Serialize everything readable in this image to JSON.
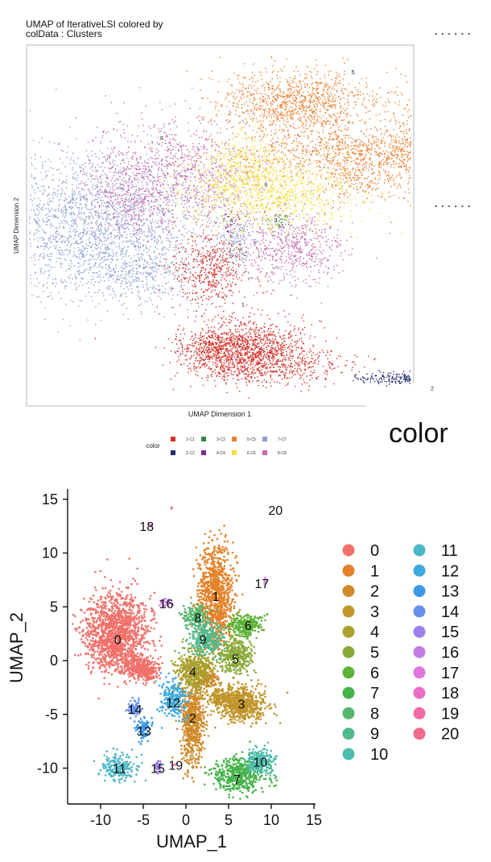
{
  "top": {
    "title_line1": "UMAP of IterativeLSI  colored by",
    "title_line2": "colData :  Clusters",
    "dots_a": "......",
    "dots_b": "......",
    "big_label": "color"
  },
  "chart_data": [
    {
      "type": "scatter",
      "title": "UMAP of IterativeLSI  colored by colData :  Clusters",
      "xlabel": "UMAP Dimension 1",
      "ylabel": "UMAP Dimension 2",
      "grid": false,
      "legend_title": "color",
      "legend_position": "bottom",
      "series": [
        {
          "name": "1-C1",
          "color": "#d62f28",
          "centroid": [
            0.12,
            -0.45
          ],
          "label": "1"
        },
        {
          "name": "2-C2",
          "color": "#232c6e",
          "centroid": [
            1.1,
            -0.92
          ],
          "label": "2"
        },
        {
          "name": "3-C3",
          "color": "#2e8b3e",
          "centroid": [
            0.29,
            0.02
          ],
          "label": "3"
        },
        {
          "name": "4-C4",
          "color": "#7b2c92",
          "centroid": [
            0.06,
            0.02
          ],
          "label": "4"
        },
        {
          "name": "5-C5",
          "color": "#ec7e2d",
          "centroid": [
            0.69,
            0.85
          ],
          "label": "5"
        },
        {
          "name": "6-C6",
          "color": "#f6df3e",
          "centroid": [
            0.24,
            0.22
          ],
          "label": "6"
        },
        {
          "name": "7-C7",
          "color": "#8da0d1",
          "centroid": [
            -0.7,
            0.01
          ],
          "label": "7"
        },
        {
          "name": "8-C8",
          "color": "#c26bb0",
          "centroid": [
            -0.3,
            0.48
          ],
          "label": "8"
        }
      ]
    },
    {
      "type": "scatter",
      "xlabel": "UMAP_1",
      "ylabel": "UMAP_2",
      "xlim": [
        -14,
        15.5
      ],
      "ylim": [
        -13.5,
        15.5
      ],
      "x_ticks": [
        -10,
        -5,
        0,
        5,
        10,
        15
      ],
      "y_ticks": [
        -10,
        -5,
        0,
        5,
        10,
        15
      ],
      "grid": false,
      "legend_position": "right",
      "series": [
        {
          "name": "0",
          "color": "#f0706a",
          "centroid": [
            -8.0,
            2.0
          ]
        },
        {
          "name": "1",
          "color": "#e3822a",
          "centroid": [
            3.5,
            6.0
          ]
        },
        {
          "name": "2",
          "color": "#d08a2a",
          "centroid": [
            0.8,
            -5.3
          ]
        },
        {
          "name": "3",
          "color": "#c0962c",
          "centroid": [
            6.5,
            -4.0
          ]
        },
        {
          "name": "4",
          "color": "#a8a12e",
          "centroid": [
            0.8,
            -1.0
          ]
        },
        {
          "name": "5",
          "color": "#8ba93a",
          "centroid": [
            5.8,
            0.2
          ]
        },
        {
          "name": "6",
          "color": "#5cb338",
          "centroid": [
            7.3,
            3.3
          ]
        },
        {
          "name": "7",
          "color": "#45b34a",
          "centroid": [
            6.0,
            -11.0
          ]
        },
        {
          "name": "8",
          "color": "#56b66e",
          "centroid": [
            1.4,
            4.0
          ]
        },
        {
          "name": "9",
          "color": "#4fba8e",
          "centroid": [
            2.0,
            2.0
          ]
        },
        {
          "name": "10",
          "color": "#4cbcae",
          "centroid": [
            8.7,
            -9.4
          ]
        },
        {
          "name": "11",
          "color": "#4db6c6",
          "centroid": [
            -7.8,
            -10.0
          ]
        },
        {
          "name": "12",
          "color": "#3fa9dd",
          "centroid": [
            -1.5,
            -3.9
          ]
        },
        {
          "name": "13",
          "color": "#3e98e8",
          "centroid": [
            -4.9,
            -6.5
          ]
        },
        {
          "name": "14",
          "color": "#6590ec",
          "centroid": [
            -6.0,
            -4.5
          ]
        },
        {
          "name": "15",
          "color": "#9f7fea",
          "centroid": [
            -3.3,
            -10.0
          ]
        },
        {
          "name": "16",
          "color": "#c47ce6",
          "centroid": [
            -2.3,
            5.3
          ]
        },
        {
          "name": "17",
          "color": "#e076dc",
          "centroid": [
            8.9,
            7.2
          ]
        },
        {
          "name": "18",
          "color": "#ea6ec8",
          "centroid": [
            -4.6,
            12.5
          ]
        },
        {
          "name": "19",
          "color": "#ef6aa6",
          "centroid": [
            -1.2,
            -9.7
          ]
        },
        {
          "name": "20",
          "color": "#ef6b87",
          "centroid": [
            10.5,
            14.0
          ]
        }
      ]
    }
  ]
}
